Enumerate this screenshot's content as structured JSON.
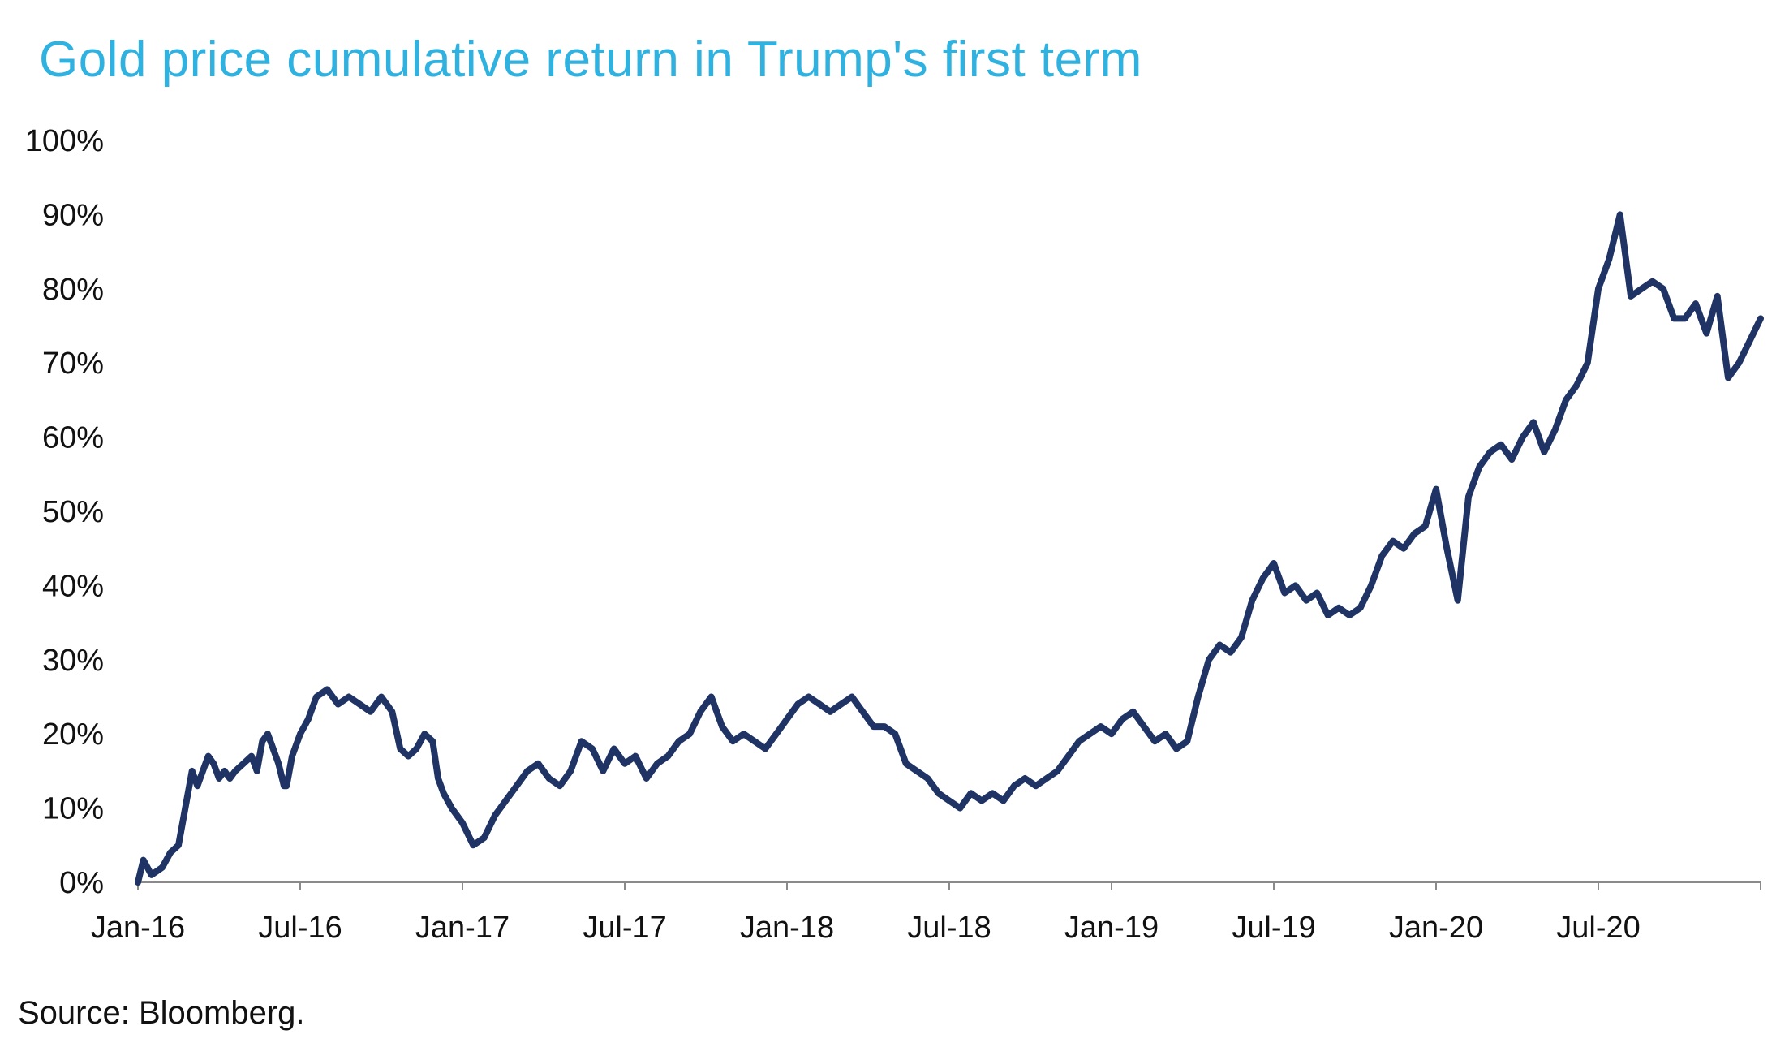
{
  "chart_data": {
    "type": "line",
    "title": "Gold price cumulative return in Trump's first term",
    "xlabel": "",
    "ylabel": "",
    "ylim": [
      0,
      100
    ],
    "x_tick_labels": [
      "Jan-16",
      "Jul-16",
      "Jan-17",
      "Jul-17",
      "Jan-18",
      "Jul-18",
      "Jan-19",
      "Jul-19",
      "Jan-20",
      "Jul-20"
    ],
    "y_tick_labels": [
      "0%",
      "10%",
      "20%",
      "30%",
      "40%",
      "50%",
      "60%",
      "70%",
      "80%",
      "90%",
      "100%"
    ],
    "grid": false,
    "legend": "none",
    "x_range_months": [
      0,
      60
    ],
    "series": [
      {
        "name": "Gold price cumulative return",
        "color": "#1f3464",
        "x": [
          0,
          0.2,
          0.5,
          0.9,
          1.2,
          1.5,
          1.7,
          1.8,
          2.0,
          2.2,
          2.4,
          2.6,
          2.8,
          3.0,
          3.2,
          3.4,
          3.6,
          3.9,
          4.2,
          4.4,
          4.6,
          4.8,
          5.0,
          5.2,
          5.4,
          5.5,
          5.7,
          6.0,
          6.3,
          6.6,
          7.0,
          7.4,
          7.8,
          8.2,
          8.6,
          9.0,
          9.4,
          9.7,
          10.0,
          10.3,
          10.6,
          10.9,
          11.1,
          11.3,
          11.6,
          12.0,
          12.4,
          12.8,
          13.2,
          13.6,
          14.0,
          14.4,
          14.8,
          15.2,
          15.6,
          16.0,
          16.4,
          16.8,
          17.2,
          17.6,
          18.0,
          18.4,
          18.8,
          19.2,
          19.6,
          20.0,
          20.4,
          20.8,
          21.2,
          21.6,
          22.0,
          22.4,
          22.8,
          23.2,
          23.6,
          24.0,
          24.4,
          24.8,
          25.2,
          25.6,
          26.0,
          26.4,
          26.8,
          27.2,
          27.6,
          28.0,
          28.4,
          28.8,
          29.2,
          29.6,
          30.0,
          30.4,
          30.8,
          31.2,
          31.6,
          32.0,
          32.4,
          32.8,
          33.2,
          33.6,
          34.0,
          34.4,
          34.8,
          35.2,
          35.6,
          36.0,
          36.4,
          36.8,
          37.2,
          37.6,
          38.0,
          38.4,
          38.8,
          39.2,
          39.6,
          40.0,
          40.4,
          40.8,
          41.2,
          41.6,
          42.0,
          42.4,
          42.8,
          43.2,
          43.6,
          44.0,
          44.4,
          44.8,
          45.2,
          45.6,
          46.0,
          46.4,
          46.8,
          47.2,
          47.6,
          48.0,
          48.4,
          48.8,
          49.2,
          49.6,
          50.0,
          50.4,
          50.8,
          51.2,
          51.6,
          52.0,
          52.4,
          52.8,
          53.2,
          53.6,
          54.0,
          54.4,
          54.8,
          55.2,
          55.6,
          56.0,
          56.4,
          56.8,
          57.2,
          57.6,
          58.0,
          58.4,
          58.8,
          59.2,
          59.6,
          60.0
        ],
        "y": [
          0,
          3,
          1,
          2,
          4,
          5,
          9,
          11,
          15,
          13,
          15,
          17,
          16,
          14,
          15,
          14,
          15,
          16,
          17,
          15,
          19,
          20,
          18,
          16,
          13,
          13,
          17,
          20,
          22,
          25,
          26,
          24,
          25,
          24,
          23,
          25,
          23,
          18,
          17,
          18,
          20,
          19,
          14,
          12,
          10,
          8,
          5,
          6,
          9,
          11,
          13,
          15,
          16,
          14,
          13,
          15,
          19,
          18,
          15,
          18,
          16,
          17,
          14,
          16,
          17,
          19,
          20,
          23,
          25,
          21,
          19,
          20,
          19,
          18,
          20,
          22,
          24,
          25,
          24,
          23,
          24,
          25,
          23,
          21,
          21,
          20,
          16,
          15,
          14,
          12,
          11,
          10,
          12,
          11,
          12,
          11,
          13,
          14,
          13,
          14,
          15,
          17,
          19,
          20,
          21,
          20,
          22,
          23,
          21,
          19,
          20,
          18,
          19,
          25,
          30,
          32,
          31,
          33,
          38,
          41,
          43,
          39,
          40,
          38,
          39,
          36,
          37,
          36,
          37,
          40,
          44,
          46,
          45,
          47,
          48,
          53,
          45,
          38,
          52,
          56,
          58,
          59,
          57,
          60,
          62,
          58,
          61,
          65,
          67,
          70,
          80,
          84,
          90,
          79,
          80,
          81,
          80,
          76,
          76,
          78,
          74,
          79,
          68,
          70,
          73,
          76
        ]
      }
    ]
  },
  "source": "Source: Bloomberg."
}
